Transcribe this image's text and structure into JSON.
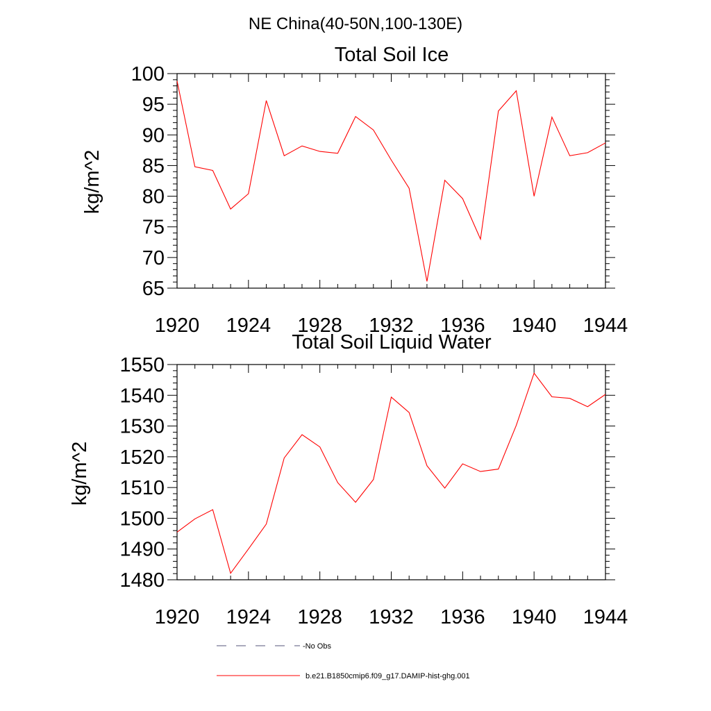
{
  "suptitle": "NE China(40-50N,100-130E)",
  "colors": {
    "model": "#ff0000",
    "obs": "#55557a",
    "axis": "#000000"
  },
  "legend": [
    {
      "label": "No Obs",
      "style": "dashed",
      "color": "#55557a"
    },
    {
      "label": "b.e21.B1850cmip6.f09_g17.DAMIP-hist-ghg.001",
      "style": "solid",
      "color": "#ff0000"
    }
  ],
  "chart_data": [
    {
      "type": "line",
      "title": "Total Soil Ice",
      "xlabel": "",
      "ylabel": "kg/m^2",
      "xlim": [
        1920,
        1944
      ],
      "ylim": [
        65,
        100
      ],
      "xticks": [
        1920,
        1924,
        1928,
        1932,
        1936,
        1940,
        1944
      ],
      "yticks": [
        65,
        70,
        75,
        80,
        85,
        90,
        95,
        100
      ],
      "y_minor_step": 1,
      "x": [
        1920,
        1921,
        1922,
        1923,
        1924,
        1925,
        1926,
        1927,
        1928,
        1929,
        1930,
        1931,
        1932,
        1933,
        1934,
        1935,
        1936,
        1937,
        1938,
        1939,
        1940,
        1941,
        1942,
        1943,
        1944
      ],
      "series": [
        {
          "name": "b.e21.B1850cmip6.f09_g17.DAMIP-hist-ghg.001",
          "values": [
            98.8,
            84.8,
            84.2,
            77.9,
            80.4,
            95.6,
            86.6,
            88.2,
            87.3,
            87.0,
            93.0,
            90.8,
            85.9,
            81.3,
            66.1,
            82.6,
            79.6,
            73.0,
            93.9,
            97.2,
            80.0,
            92.9,
            86.6,
            87.1,
            88.7
          ]
        }
      ],
      "grid": false
    },
    {
      "type": "line",
      "title": "Total Soil Liquid Water",
      "xlabel": "",
      "ylabel": "kg/m^2",
      "xlim": [
        1920,
        1944
      ],
      "ylim": [
        1480,
        1550
      ],
      "xticks": [
        1920,
        1924,
        1928,
        1932,
        1936,
        1940,
        1944
      ],
      "yticks": [
        1480,
        1490,
        1500,
        1510,
        1520,
        1530,
        1540,
        1550
      ],
      "y_minor_step": 2,
      "x": [
        1920,
        1921,
        1922,
        1923,
        1924,
        1925,
        1926,
        1927,
        1928,
        1929,
        1930,
        1931,
        1932,
        1933,
        1934,
        1935,
        1936,
        1937,
        1938,
        1939,
        1940,
        1941,
        1942,
        1943,
        1944
      ],
      "series": [
        {
          "name": "b.e21.B1850cmip6.f09_g17.DAMIP-hist-ghg.001",
          "values": [
            1495.5,
            1499.8,
            1502.8,
            1482.1,
            1490.0,
            1498.1,
            1519.6,
            1527.2,
            1523.2,
            1511.6,
            1505.2,
            1512.6,
            1539.4,
            1534.4,
            1517.1,
            1509.8,
            1517.7,
            1515.2,
            1516.0,
            1530.2,
            1547.2,
            1539.5,
            1539.0,
            1536.3,
            1540.3
          ]
        }
      ],
      "grid": false
    }
  ]
}
